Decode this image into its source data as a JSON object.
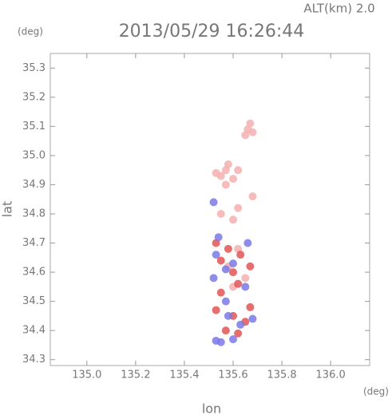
{
  "chart_data": {
    "type": "scatter",
    "title": "2013/05/29 16:26:44",
    "subtitle": "ALT(km) 2.0",
    "x_label": "lon",
    "x_unit": "(deg)",
    "y_label": "lat",
    "y_unit": "(deg)",
    "xlim": [
      134.85,
      136.16
    ],
    "ylim": [
      34.28,
      35.35
    ],
    "xticks": [
      {
        "value": 135.0,
        "label": "135.0"
      },
      135.2,
      135.4,
      135.6,
      135.8,
      {
        "value": 136.0,
        "label": "136.0"
      }
    ],
    "yticks": [
      34.3,
      34.4,
      34.5,
      34.6,
      34.7,
      34.8,
      34.9,
      {
        "value": 35.0,
        "label": "35.0"
      },
      35.1,
      35.2,
      35.3
    ],
    "series": [
      {
        "color": "#f5b0b0",
        "x": [
          135.57,
          135.55,
          135.6,
          135.58,
          135.53,
          135.62,
          135.57,
          135.66,
          135.68,
          135.67,
          135.65,
          135.6,
          135.62,
          135.55,
          135.68,
          135.62,
          135.58,
          135.6,
          135.65
        ],
        "y": [
          34.95,
          34.93,
          34.92,
          34.97,
          34.94,
          34.95,
          34.9,
          35.09,
          35.08,
          35.11,
          35.07,
          34.78,
          34.82,
          34.8,
          34.86,
          34.68,
          34.62,
          34.55,
          34.58
        ]
      },
      {
        "color": "#e05555",
        "x": [
          135.58,
          135.63,
          135.55,
          135.67,
          135.6,
          135.62,
          135.55,
          135.53,
          135.6,
          135.57,
          135.65,
          135.62,
          135.67,
          135.53
        ],
        "y": [
          34.68,
          34.66,
          34.64,
          34.62,
          34.6,
          34.56,
          34.53,
          34.47,
          34.45,
          34.4,
          34.43,
          34.39,
          34.48,
          34.7
        ]
      },
      {
        "color": "#7a7ae6",
        "x": [
          135.53,
          135.57,
          135.52,
          135.6,
          135.65,
          135.68,
          135.63,
          135.58,
          135.6,
          135.55,
          135.53,
          135.57,
          135.54,
          135.66,
          135.52
        ],
        "y": [
          34.66,
          34.61,
          34.58,
          34.63,
          34.55,
          34.44,
          34.42,
          34.45,
          34.37,
          34.36,
          34.365,
          34.5,
          34.72,
          34.7,
          34.84
        ]
      }
    ]
  }
}
